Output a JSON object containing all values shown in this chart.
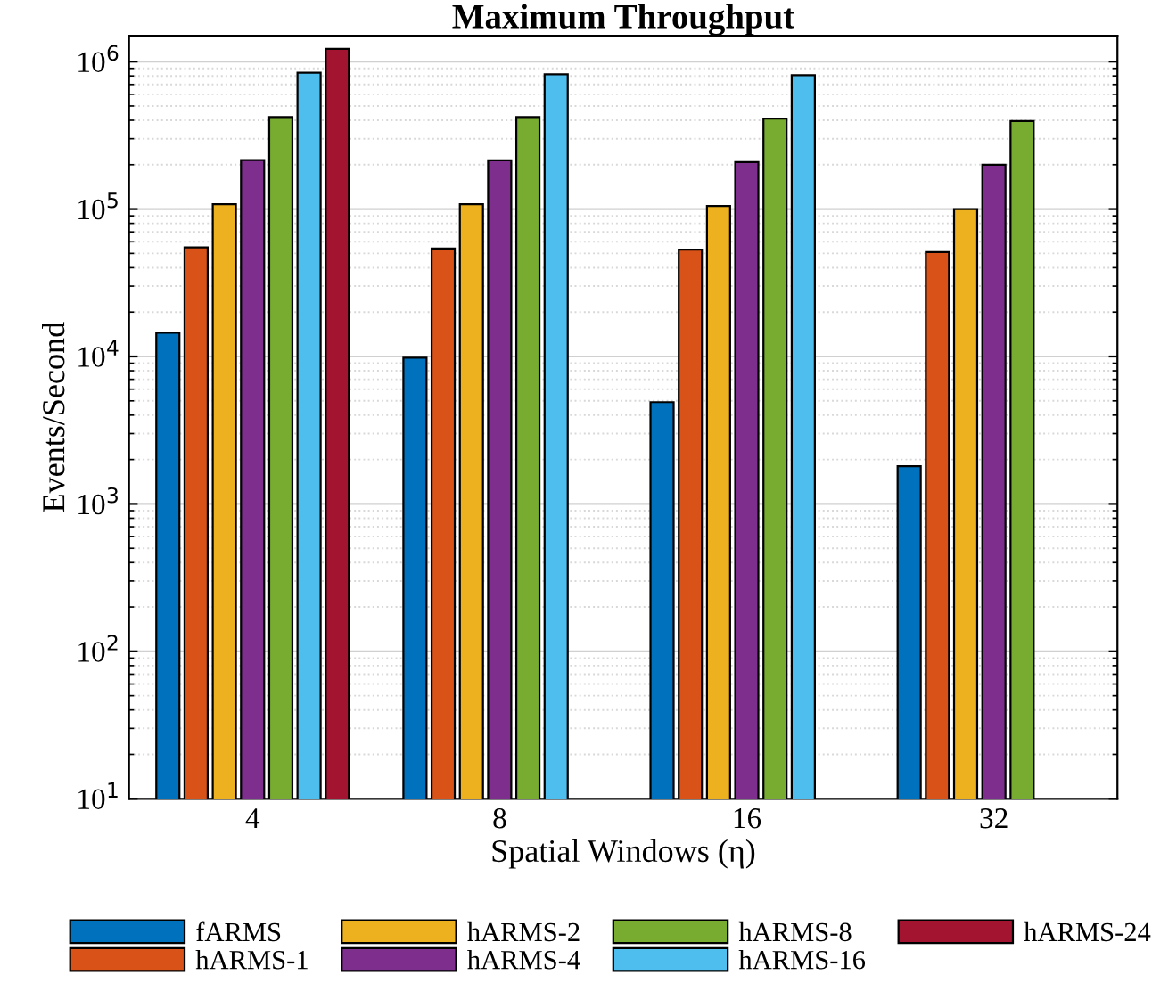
{
  "chart_data": {
    "type": "bar",
    "title": "Maximum Throughput",
    "xlabel": "Spatial Windows (η)",
    "ylabel": "Events/Second",
    "categories": [
      "4",
      "8",
      "16",
      "32"
    ],
    "series": [
      {
        "name": "fARMS",
        "color": "#0072bd",
        "values": [
          14500,
          9800,
          4900,
          1800
        ]
      },
      {
        "name": "hARMS-1",
        "color": "#d95319",
        "values": [
          55000,
          54000,
          53000,
          51000
        ]
      },
      {
        "name": "hARMS-2",
        "color": "#edb120",
        "values": [
          108000,
          108000,
          105000,
          100000
        ]
      },
      {
        "name": "hARMS-4",
        "color": "#7e2f8e",
        "values": [
          215000,
          214000,
          208000,
          200000
        ]
      },
      {
        "name": "hARMS-8",
        "color": "#77ac30",
        "values": [
          420000,
          420000,
          410000,
          395000
        ]
      },
      {
        "name": "hARMS-16",
        "color": "#4dbeee",
        "values": [
          840000,
          820000,
          810000,
          null
        ]
      },
      {
        "name": "hARMS-24",
        "color": "#a2142f",
        "values": [
          1220000,
          null,
          null,
          null
        ]
      }
    ],
    "log": "y",
    "ylim": [
      10,
      1500000
    ],
    "yticks": [
      {
        "value": 10,
        "label": "10$^{1}$"
      },
      {
        "value": 100,
        "label": "10$^{2}$"
      },
      {
        "value": 1000,
        "label": "10$^{3}$"
      },
      {
        "value": 10000,
        "label": "10$^{4}$"
      },
      {
        "value": 100000,
        "label": "10$^{5}$"
      },
      {
        "value": 1000000,
        "label": "10$^{6}$"
      }
    ],
    "grid": "y",
    "legend": "bottom"
  }
}
